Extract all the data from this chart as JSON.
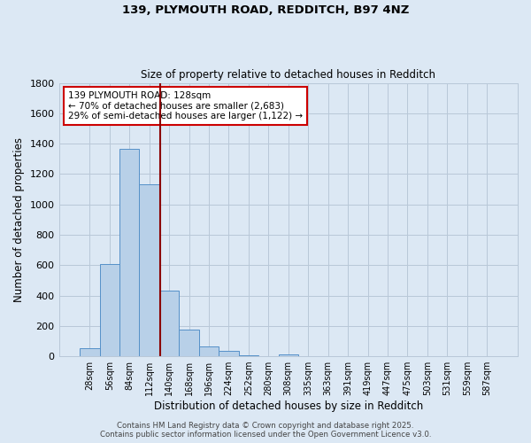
{
  "title1": "139, PLYMOUTH ROAD, REDDITCH, B97 4NZ",
  "title2": "Size of property relative to detached houses in Redditch",
  "xlabel": "Distribution of detached houses by size in Redditch",
  "ylabel": "Number of detached properties",
  "bar_labels": [
    "28sqm",
    "56sqm",
    "84sqm",
    "112sqm",
    "140sqm",
    "168sqm",
    "196sqm",
    "224sqm",
    "252sqm",
    "280sqm",
    "308sqm",
    "335sqm",
    "363sqm",
    "391sqm",
    "419sqm",
    "447sqm",
    "475sqm",
    "503sqm",
    "531sqm",
    "559sqm",
    "587sqm"
  ],
  "bar_values": [
    55,
    605,
    1365,
    1130,
    430,
    175,
    65,
    38,
    8,
    0,
    12,
    0,
    0,
    0,
    0,
    0,
    0,
    0,
    0,
    0,
    0
  ],
  "bar_color": "#b8d0e8",
  "bar_edge_color": "#5590c8",
  "ylim": [
    0,
    1800
  ],
  "yticks": [
    0,
    200,
    400,
    600,
    800,
    1000,
    1200,
    1400,
    1600,
    1800
  ],
  "property_line_color": "#8b0000",
  "annotation_text": "139 PLYMOUTH ROAD: 128sqm\n← 70% of detached houses are smaller (2,683)\n29% of semi-detached houses are larger (1,122) →",
  "annotation_box_color": "#ffffff",
  "annotation_box_edge_color": "#cc0000",
  "bg_color": "#dce8f4",
  "grid_color": "#b8c8d8",
  "footer_text": "Contains HM Land Registry data © Crown copyright and database right 2025.\nContains public sector information licensed under the Open Government Licence v3.0."
}
